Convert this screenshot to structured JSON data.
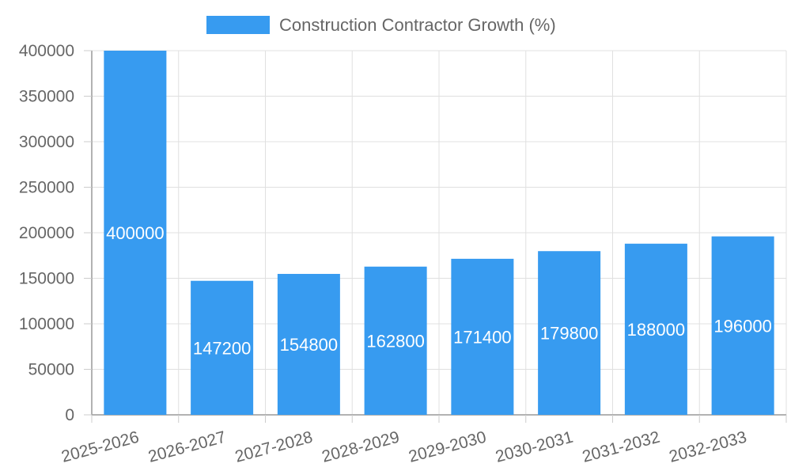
{
  "chart_data": {
    "type": "bar",
    "title": "",
    "xlabel": "",
    "ylabel": "",
    "categories": [
      "2025-2026",
      "2026-2027",
      "2027-2028",
      "2028-2029",
      "2029-2030",
      "2030-2031",
      "2031-2032",
      "2032-2033"
    ],
    "series": [
      {
        "name": "Construction Contractor Growth (%)",
        "values": [
          400000,
          147200,
          154800,
          162800,
          171400,
          179800,
          188000,
          196000
        ],
        "color": "#379bf0"
      }
    ],
    "ylim": [
      0,
      400000
    ],
    "yticks": [
      0,
      50000,
      100000,
      150000,
      200000,
      250000,
      300000,
      350000,
      400000
    ],
    "grid": true,
    "legend": "top-center"
  }
}
